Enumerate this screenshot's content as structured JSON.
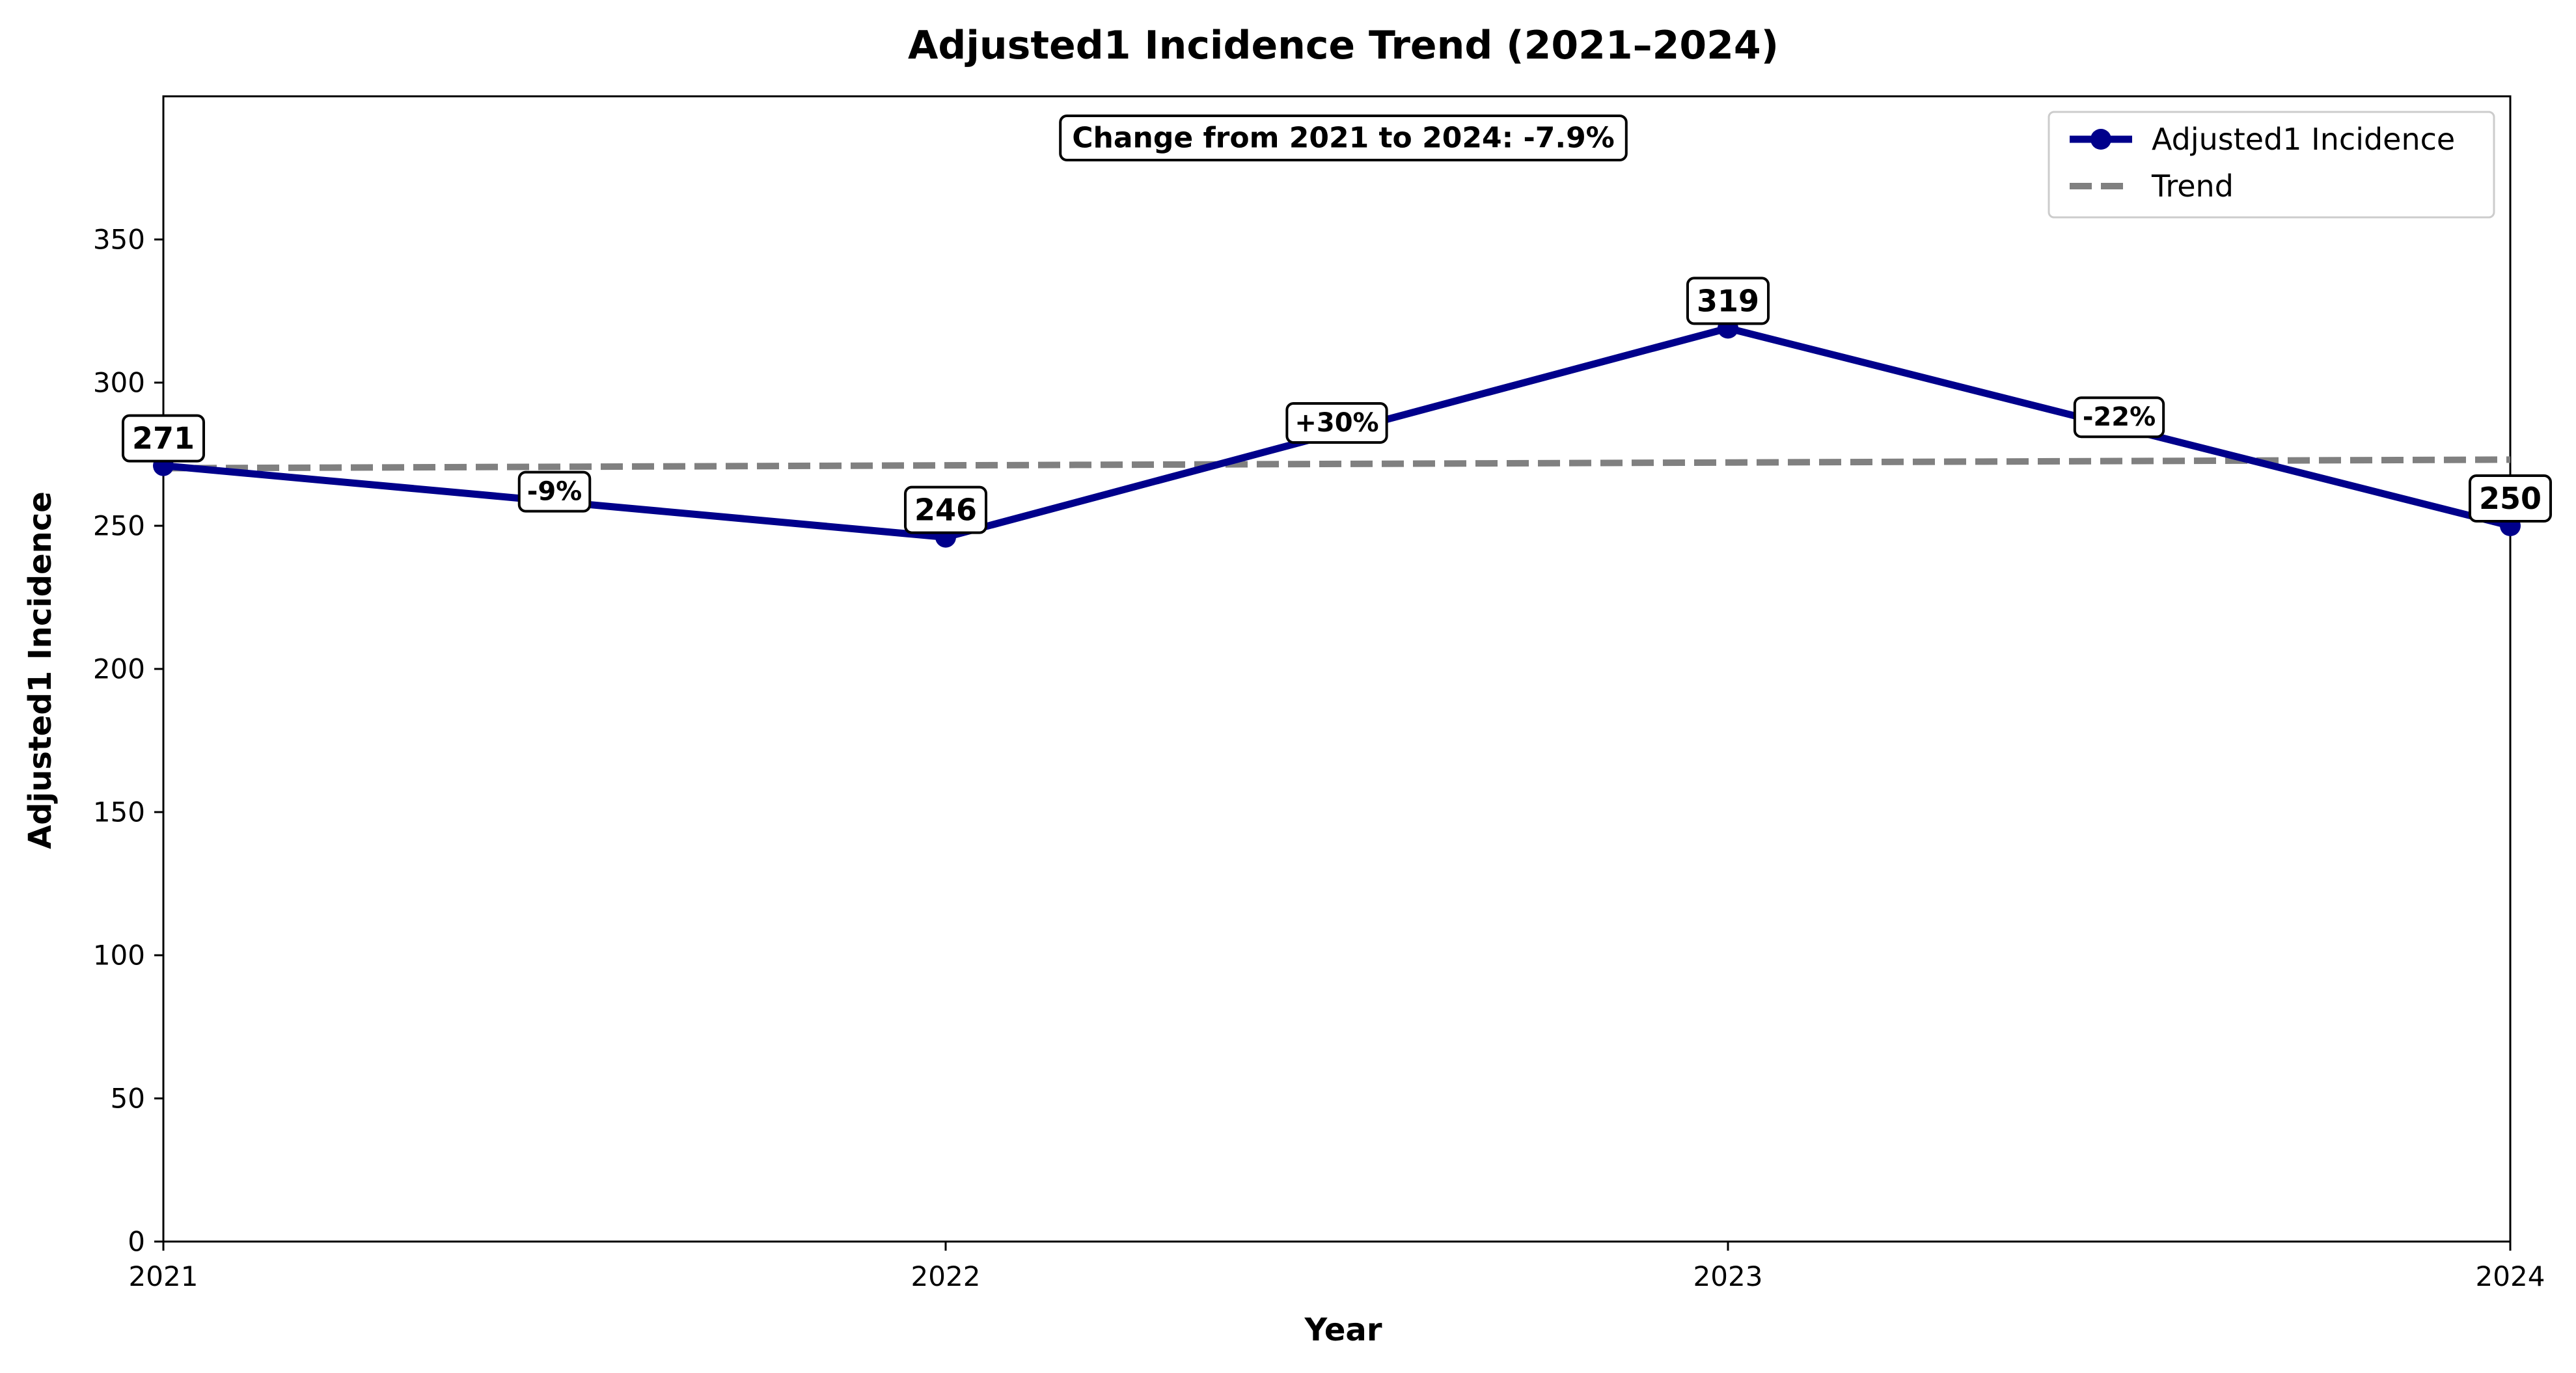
{
  "chart_data": {
    "type": "line",
    "title": "Adjusted1 Incidence Trend (2021–2024)",
    "xlabel": "Year",
    "ylabel": "Adjusted1 Incidence",
    "x": [
      2021,
      2022,
      2023,
      2024
    ],
    "x_tick_labels": [
      "2021",
      "2022",
      "2023",
      "2024"
    ],
    "y_ticks": [
      0,
      50,
      100,
      150,
      200,
      250,
      300,
      350
    ],
    "y_tick_labels": [
      "0",
      "50",
      "100",
      "150",
      "200",
      "250",
      "300",
      "350"
    ],
    "xlim": [
      2021,
      2024
    ],
    "ylim": [
      0,
      400
    ],
    "series": [
      {
        "name": "Adjusted1 Incidence",
        "values": [
          271,
          246,
          319,
          250
        ],
        "data_labels": [
          "271",
          "246",
          "319",
          "250"
        ],
        "color": "#00008b",
        "style": "solid",
        "marker": "circle"
      },
      {
        "name": "Trend",
        "values": [
          270.1,
          271.1,
          272.1,
          273.1
        ],
        "color": "#808080",
        "style": "dashed"
      }
    ],
    "segment_changes": [
      {
        "between": [
          2021,
          2022
        ],
        "label": "-9%"
      },
      {
        "between": [
          2022,
          2023
        ],
        "label": "+30%"
      },
      {
        "between": [
          2023,
          2024
        ],
        "label": "-22%"
      }
    ],
    "summary_annotation": "Change from 2021 to 2024: -7.9%",
    "legend_position": "top-right",
    "grid": false
  }
}
